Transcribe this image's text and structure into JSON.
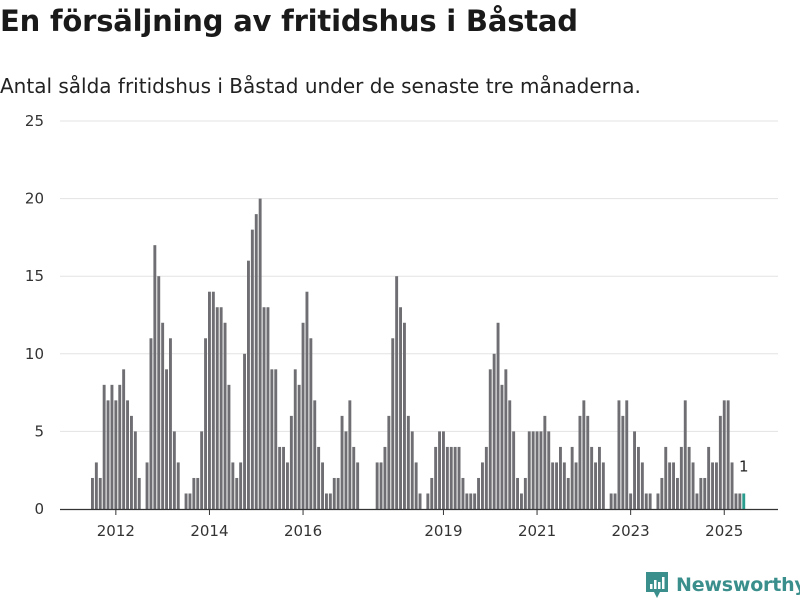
{
  "title": "En försäljning av fritidshus i Båstad",
  "subtitle": "Antal sålda fritidshus i Båstad under de senaste tre månaderna.",
  "brand": {
    "name": "Newsworthy",
    "icon": "newsworthy-logo-icon",
    "color": "#3a8f8c"
  },
  "colors": {
    "bar": "#6e6e73",
    "highlight": "#2a9d8f",
    "grid": "#e3e3e3",
    "axis": "#333333"
  },
  "chart_data": {
    "type": "bar",
    "title": "En försäljning av fritidshus i Båstad",
    "xlabel": "",
    "ylabel": "",
    "ylim": [
      0,
      25
    ],
    "y_ticks": [
      0,
      5,
      10,
      15,
      20,
      25
    ],
    "x_ticks": [
      "2012",
      "2014",
      "2016",
      "2019",
      "2021",
      "2023",
      "2025"
    ],
    "x_tick_index": [
      6,
      30,
      54,
      90,
      114,
      138,
      162
    ],
    "highlight_label": "1",
    "values": [
      2,
      3,
      2,
      8,
      7,
      8,
      7,
      8,
      9,
      7,
      6,
      5,
      2,
      0,
      3,
      11,
      17,
      15,
      12,
      9,
      11,
      5,
      3,
      0,
      1,
      1,
      2,
      2,
      5,
      11,
      14,
      14,
      13,
      13,
      12,
      8,
      3,
      2,
      3,
      10,
      16,
      18,
      19,
      20,
      13,
      13,
      9,
      9,
      4,
      4,
      3,
      6,
      9,
      8,
      12,
      14,
      11,
      7,
      4,
      3,
      1,
      1,
      2,
      2,
      6,
      5,
      7,
      4,
      3,
      0,
      0,
      0,
      0,
      3,
      3,
      4,
      6,
      11,
      15,
      13,
      12,
      6,
      5,
      3,
      1,
      0,
      1,
      2,
      4,
      5,
      5,
      4,
      4,
      4,
      4,
      2,
      1,
      1,
      1,
      2,
      3,
      4,
      9,
      10,
      12,
      8,
      9,
      7,
      5,
      2,
      1,
      2,
      5,
      5,
      5,
      5,
      6,
      5,
      3,
      3,
      4,
      3,
      2,
      4,
      3,
      6,
      7,
      6,
      4,
      3,
      4,
      3,
      0,
      1,
      1,
      7,
      6,
      7,
      1,
      5,
      4,
      3,
      1,
      1,
      0,
      1,
      2,
      4,
      3,
      3,
      2,
      4,
      7,
      4,
      3,
      1,
      2,
      2,
      4,
      3,
      3,
      6,
      7,
      7,
      3,
      1,
      1,
      1
    ]
  }
}
